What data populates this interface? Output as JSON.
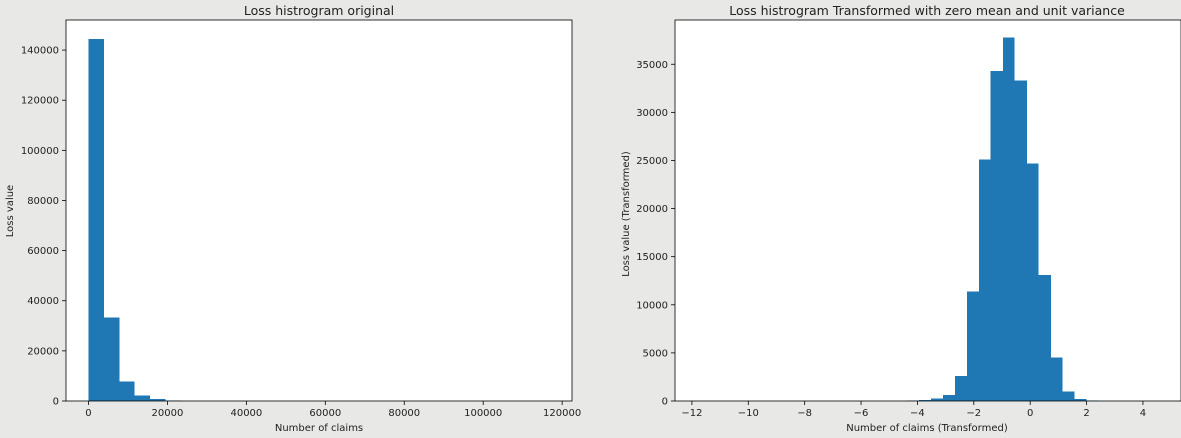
{
  "chart_data": [
    {
      "type": "bar",
      "title": "Loss histrogram original",
      "xlabel": "Number of claims",
      "ylabel": "Loss value",
      "xlim": [
        -5700,
        122500
      ],
      "ylim": [
        0,
        152000
      ],
      "xticks": [
        0,
        20000,
        40000,
        60000,
        80000,
        100000,
        120000
      ],
      "xtick_labels": [
        "0",
        "20000",
        "40000",
        "60000",
        "80000",
        "100000",
        "120000"
      ],
      "yticks": [
        0,
        20000,
        40000,
        60000,
        80000,
        100000,
        120000,
        140000
      ],
      "ytick_labels": [
        "0",
        "20000",
        "40000",
        "60000",
        "80000",
        "100000",
        "120000",
        "140000"
      ],
      "bin_edges": [
        0,
        3900,
        7800,
        11700,
        15600,
        19500,
        23400,
        27300
      ],
      "values": [
        144500,
        33400,
        7800,
        2100,
        800,
        300,
        100
      ],
      "bar_color": "#1f77b4",
      "grid": false
    },
    {
      "type": "bar",
      "title": "Loss histrogram Transformed with zero mean and unit variance",
      "xlabel": "Number of claims (Transformed)",
      "ylabel": "Loss value (Transformed)",
      "xlim": [
        -12.6,
        5.35
      ],
      "ylim": [
        0,
        39600
      ],
      "xticks": [
        -12,
        -10,
        -8,
        -6,
        -4,
        -2,
        0,
        2,
        4
      ],
      "xtick_labels": [
        "−12",
        "−10",
        "−8",
        "−6",
        "−4",
        "−2",
        "0",
        "2",
        "4"
      ],
      "yticks": [
        0,
        5000,
        10000,
        15000,
        20000,
        25000,
        30000,
        35000
      ],
      "ytick_labels": [
        "0",
        "5000",
        "10000",
        "15000",
        "20000",
        "25000",
        "30000",
        "35000"
      ],
      "bin_edges": [
        -4.8,
        -4.37,
        -3.95,
        -3.52,
        -3.1,
        -2.67,
        -2.25,
        -1.82,
        -1.4,
        -0.97,
        -0.55,
        -0.12,
        0.3,
        0.73,
        1.15,
        1.58,
        2.0,
        2.43,
        2.85,
        3.28
      ],
      "values": [
        20,
        50,
        120,
        250,
        600,
        2600,
        11400,
        25100,
        34300,
        37800,
        33300,
        24700,
        13100,
        4500,
        1000,
        200,
        30,
        10,
        5
      ],
      "bar_color": "#1f77b4",
      "grid": false
    }
  ]
}
